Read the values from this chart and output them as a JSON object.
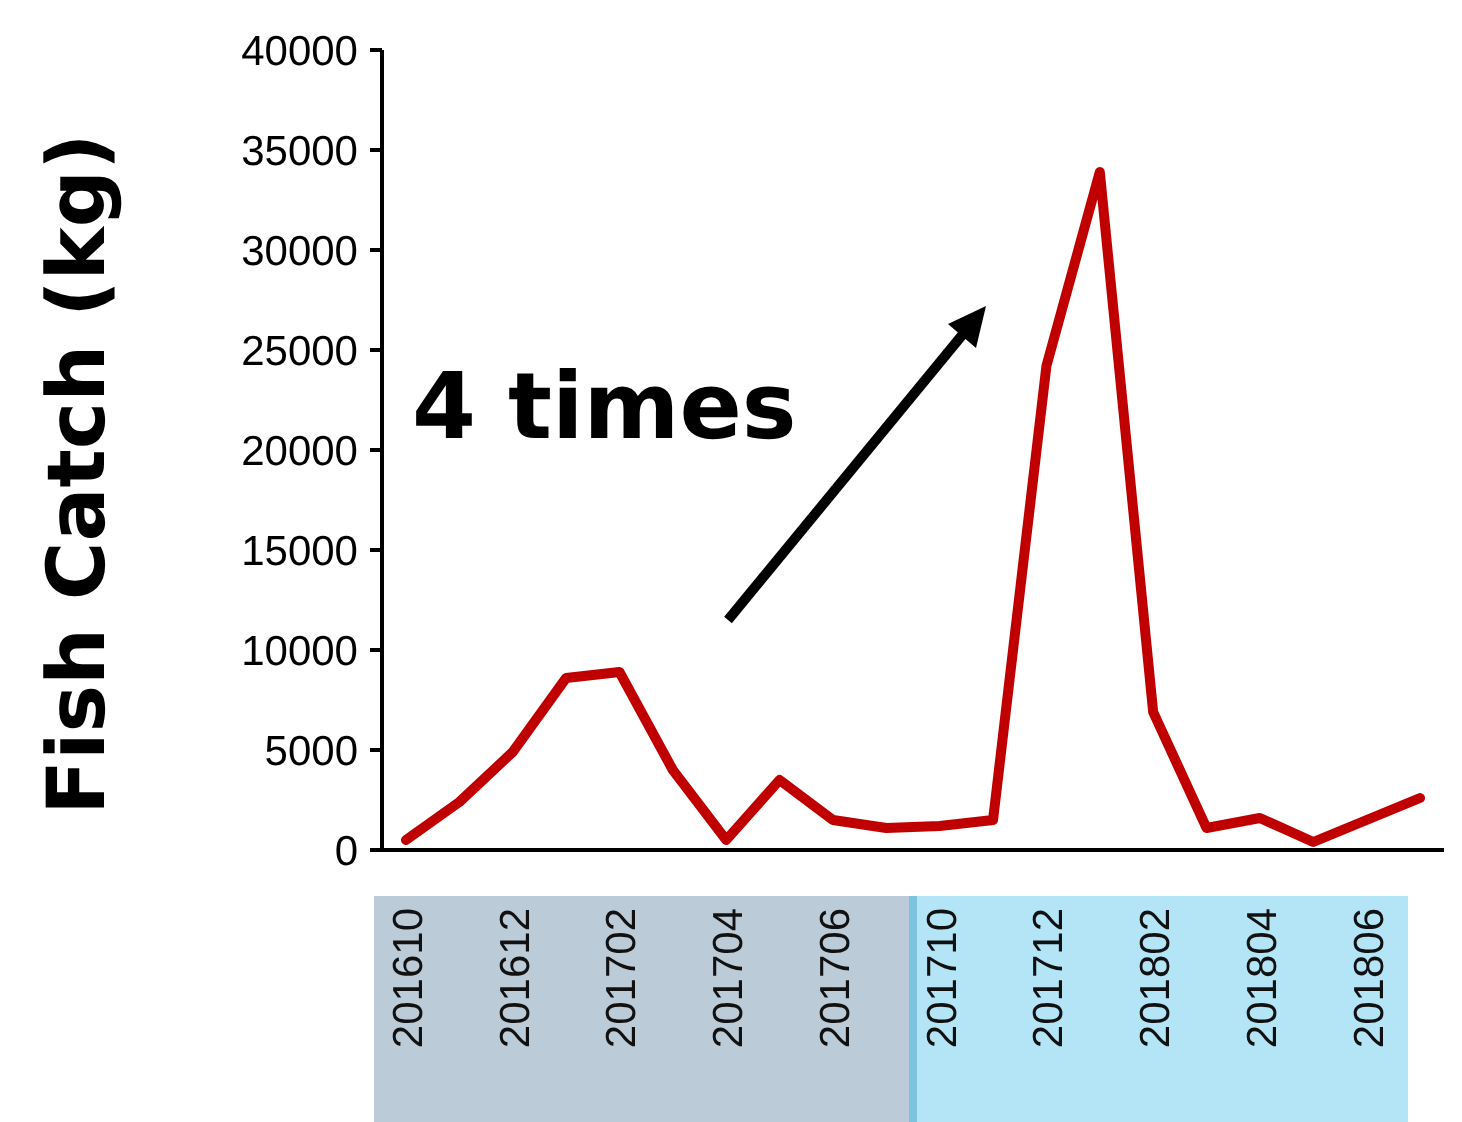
{
  "chart_data": {
    "type": "line",
    "ylabel": "Fish Catch (kg)",
    "categories": [
      "201610",
      null,
      "201612",
      null,
      "201702",
      null,
      "201704",
      null,
      "201706",
      null,
      "201710",
      null,
      "201712",
      null,
      "201802",
      null,
      "201804",
      null,
      "201806",
      null
    ],
    "series": [
      {
        "color": "#c00000",
        "values": [
          500,
          2400,
          4900,
          8600,
          8900,
          4000,
          500,
          3500,
          1500,
          1100,
          1200,
          1500,
          24200,
          33900,
          6900,
          1100,
          1600,
          400,
          1500,
          2600
        ]
      }
    ],
    "ylim": [
      0,
      40000
    ],
    "yticks": [
      0,
      5000,
      10000,
      15000,
      20000,
      25000,
      30000,
      35000,
      40000
    ],
    "marker": "none",
    "line_style": "solid",
    "annotations": [
      "4 times"
    ]
  }
}
